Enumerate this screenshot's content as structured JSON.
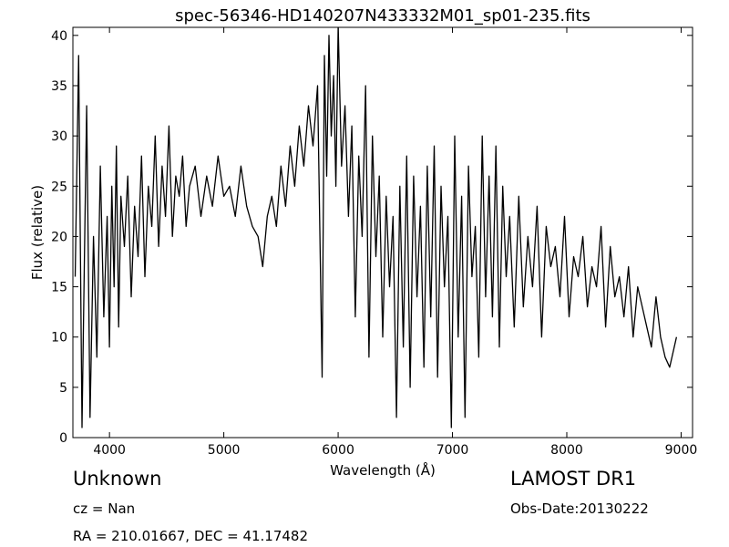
{
  "chart_data": {
    "type": "line",
    "title": "spec-56346-HD140207N433332M01_sp01-235.fits",
    "xlabel": "Wavelength (Å)",
    "ylabel": "Flux (relative)",
    "xlim": [
      3680,
      9100
    ],
    "ylim": [
      0,
      40.8
    ],
    "xticks": [
      4000,
      5000,
      6000,
      7000,
      8000,
      9000
    ],
    "yticks": [
      0,
      5,
      10,
      15,
      20,
      25,
      30,
      35,
      40
    ],
    "line_color": "#000000",
    "series": [
      {
        "name": "",
        "x": [
          3700,
          3730,
          3760,
          3780,
          3800,
          3830,
          3860,
          3890,
          3920,
          3950,
          3980,
          4000,
          4020,
          4040,
          4060,
          4080,
          4100,
          4130,
          4160,
          4190,
          4220,
          4250,
          4280,
          4310,
          4340,
          4370,
          4400,
          4430,
          4460,
          4490,
          4520,
          4550,
          4580,
          4610,
          4640,
          4670,
          4700,
          4750,
          4800,
          4850,
          4900,
          4950,
          5000,
          5050,
          5100,
          5150,
          5200,
          5250,
          5300,
          5340,
          5380,
          5420,
          5460,
          5500,
          5540,
          5580,
          5620,
          5660,
          5700,
          5740,
          5780,
          5820,
          5860,
          5880,
          5900,
          5920,
          5940,
          5960,
          5980,
          6000,
          6030,
          6060,
          6090,
          6120,
          6150,
          6180,
          6210,
          6240,
          6270,
          6300,
          6330,
          6360,
          6390,
          6420,
          6450,
          6480,
          6510,
          6540,
          6570,
          6600,
          6630,
          6660,
          6690,
          6720,
          6750,
          6780,
          6810,
          6840,
          6870,
          6900,
          6930,
          6960,
          6990,
          7020,
          7050,
          7080,
          7110,
          7140,
          7170,
          7200,
          7230,
          7260,
          7290,
          7320,
          7350,
          7380,
          7410,
          7440,
          7470,
          7500,
          7540,
          7580,
          7620,
          7660,
          7700,
          7740,
          7780,
          7820,
          7860,
          7900,
          7940,
          7980,
          8020,
          8060,
          8100,
          8140,
          8180,
          8220,
          8260,
          8300,
          8340,
          8380,
          8420,
          8460,
          8500,
          8540,
          8580,
          8620,
          8660,
          8700,
          8740,
          8780,
          8820,
          8860,
          8900,
          8940,
          8960
        ],
        "y": [
          16,
          38,
          1,
          17,
          33,
          2,
          20,
          8,
          27,
          12,
          22,
          9,
          25,
          15,
          29,
          11,
          24,
          19,
          26,
          14,
          23,
          18,
          28,
          16,
          25,
          21,
          30,
          19,
          27,
          22,
          31,
          20,
          26,
          24,
          28,
          21,
          25,
          27,
          22,
          26,
          23,
          28,
          24,
          25,
          22,
          27,
          23,
          21,
          20,
          17,
          22,
          24,
          21,
          27,
          23,
          29,
          25,
          31,
          27,
          33,
          29,
          35,
          6,
          38,
          26,
          40,
          30,
          36,
          25,
          41,
          27,
          33,
          22,
          31,
          12,
          28,
          20,
          35,
          8,
          30,
          18,
          26,
          10,
          24,
          15,
          22,
          2,
          25,
          9,
          28,
          5,
          26,
          14,
          23,
          7,
          27,
          12,
          29,
          6,
          25,
          15,
          22,
          1,
          30,
          10,
          24,
          2,
          27,
          16,
          21,
          8,
          30,
          14,
          26,
          12,
          29,
          9,
          25,
          16,
          22,
          11,
          24,
          13,
          20,
          15,
          23,
          10,
          21,
          17,
          19,
          14,
          22,
          12,
          18,
          16,
          20,
          13,
          17,
          15,
          21,
          11,
          19,
          14,
          16,
          12,
          17,
          10,
          15,
          13,
          11,
          9,
          14,
          10,
          8,
          7,
          9,
          10
        ]
      }
    ]
  },
  "info": {
    "object_name": "Unknown",
    "survey": "LAMOST DR1",
    "cz": "cz = Nan",
    "obs_date": "Obs-Date:20130222",
    "radec": "RA = 210.01667, DEC = 41.17482"
  }
}
